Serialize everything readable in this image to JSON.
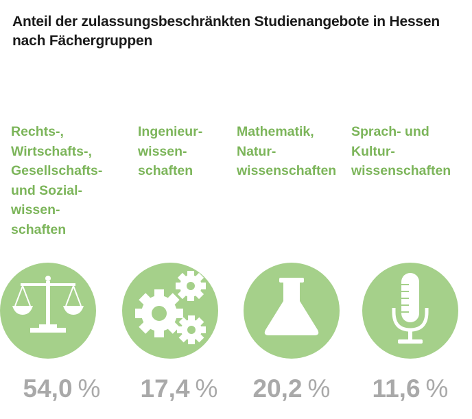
{
  "title": {
    "line1": "Anteil der zulassungsbeschränkten Studienangebote in Hessen",
    "line2": "nach Fächergruppen"
  },
  "colors": {
    "label_green": "#7cb55a",
    "circle_green": "#a5d08a",
    "value_gray": "#a9a9a9"
  },
  "chart_data": {
    "type": "table",
    "unit": "%",
    "categories": [
      "Rechts-, Wirtschafts-, Gesellschafts- und Sozialwissenschaften",
      "Ingenieurwissenschaften",
      "Mathematik, Naturwissenschaften",
      "Sprach- und Kulturwissenschaften"
    ],
    "values": [
      54.0,
      17.4,
      20.2,
      11.6
    ],
    "groups": [
      {
        "label_lines": [
          "Rechts-,",
          "Wirtschafts-,",
          "Gesellschafts-",
          "und Sozial-",
          "wissen-",
          "schaften"
        ],
        "value_text": "54,0",
        "unit_text": "%",
        "icon": "scales-icon"
      },
      {
        "label_lines": [
          "Ingenieur-",
          "wissen-",
          "schaften"
        ],
        "value_text": "17,4",
        "unit_text": "%",
        "icon": "gears-icon"
      },
      {
        "label_lines": [
          "Mathematik,",
          "Natur-",
          "wissenschaften"
        ],
        "value_text": "20,2",
        "unit_text": "%",
        "icon": "flask-icon"
      },
      {
        "label_lines": [
          "Sprach- und",
          "Kultur-",
          "wissenschaften"
        ],
        "value_text": "11,6",
        "unit_text": "%",
        "icon": "microphone-icon"
      }
    ]
  }
}
